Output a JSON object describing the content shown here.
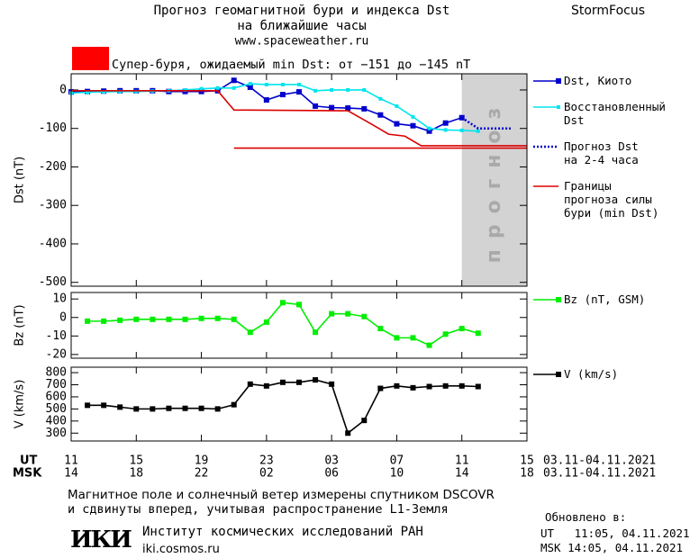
{
  "header": {
    "title": "Прогноз геомагнитной бури и индекса Dst",
    "subtitle": "на ближайшие часы",
    "url": "www.spaceweather.ru",
    "brand": "StormFocus",
    "alert": {
      "text": "Супер-буря, ожидаемый min Dst: от −151 до −145 nT",
      "color": "#ff0000"
    }
  },
  "x_axis": {
    "xlim": [
      11,
      39
    ],
    "ut_label": "UT",
    "msk_label": "MSK",
    "date_range": "03.11-04.11.2021",
    "ut_ticks": [
      11,
      15,
      19,
      23,
      {
        "value": 27,
        "label": "03"
      },
      {
        "value": 31,
        "label": "07"
      },
      {
        "value": 35,
        "label": "11"
      },
      {
        "value": 39,
        "label": "15"
      }
    ],
    "msk_ticks": [
      {
        "value": 11,
        "label": "14"
      },
      {
        "value": 15,
        "label": "18"
      },
      {
        "value": 19,
        "label": "22"
      },
      {
        "value": 23,
        "label": "02"
      },
      {
        "value": 27,
        "label": "06"
      },
      {
        "value": 31,
        "label": "10"
      },
      {
        "value": 35,
        "label": "14"
      },
      {
        "value": 39,
        "label": "18"
      }
    ]
  },
  "chart_data": [
    {
      "type": "line",
      "y_label": "Dst (nT)",
      "ylim": [
        -510,
        42
      ],
      "yticks": [
        0,
        -100,
        -200,
        -300,
        -400,
        -500
      ],
      "forecast_band": {
        "x": [
          35,
          39
        ],
        "label": "прогноз",
        "color": "#d3d3d3"
      },
      "series": [
        {
          "name": "Dst, Киото",
          "color": "#0000cd",
          "marker": "square",
          "x": [
            11,
            12,
            13,
            14,
            15,
            16,
            17,
            18,
            19,
            20,
            21,
            22,
            23,
            24,
            25,
            26,
            27,
            28,
            29,
            30,
            31,
            32,
            33,
            34,
            35
          ],
          "values": [
            -5,
            -4,
            -3,
            -2,
            -2,
            -2,
            -4,
            -4,
            -4,
            -2,
            25,
            7,
            -26,
            -12,
            -5,
            -42,
            -46,
            -47,
            -49,
            -65,
            -88,
            -93,
            -107,
            -86,
            -72
          ]
        },
        {
          "name": "Восстановленный\nDst",
          "color": "#00e5ee",
          "marker": "small-square",
          "x": [
            11,
            12,
            13,
            14,
            15,
            16,
            17,
            18,
            19,
            20,
            21,
            22,
            23,
            24,
            25,
            26,
            27,
            28,
            29,
            30,
            31,
            32,
            33,
            34,
            35,
            36
          ],
          "values": [
            -8,
            -6,
            -5,
            -4,
            -4,
            -3,
            -2,
            0,
            3,
            5,
            5,
            16,
            14,
            14,
            14,
            -2,
            0,
            0,
            0,
            -23,
            -42,
            -70,
            -100,
            -104,
            -105,
            -107
          ]
        },
        {
          "name": "Прогноз Dst\nна 2-4 часа",
          "color": "#0000cd",
          "dash": "dotted",
          "x": [
            35,
            36,
            37,
            38
          ],
          "values": [
            -72,
            -100,
            -100,
            -100
          ]
        },
        {
          "name": "Границы\nпрогноза силы\nбури (min Dst)",
          "color": "#dd0000",
          "x": [
            11,
            20,
            21,
            28,
            29.5,
            30.5,
            31.5,
            32.5,
            39
          ],
          "values": [
            -2,
            -2,
            -52,
            -54,
            -90,
            -115,
            -120,
            -145,
            -145
          ]
        },
        {
          "color": "#dd0000",
          "x": [
            21,
            39
          ],
          "values": [
            -151,
            -151
          ]
        }
      ]
    },
    {
      "type": "line",
      "y_label": "Bz (nT)",
      "ylim": [
        -22,
        13.5
      ],
      "yticks": [
        10,
        0,
        -10,
        -20
      ],
      "series": [
        {
          "name": "Bz (nT, GSM)",
          "color": "#00ee00",
          "marker": "square",
          "x": [
            12,
            13,
            14,
            15,
            16,
            17,
            18,
            19,
            20,
            21,
            22,
            23,
            24,
            25,
            26,
            27,
            28,
            29,
            30,
            31,
            32,
            33,
            34,
            35,
            36
          ],
          "values": [
            -2,
            -2,
            -1.5,
            -1,
            -1,
            -1,
            -1,
            -0.5,
            -0.5,
            -1,
            -8,
            -2.5,
            8,
            7,
            -8,
            2,
            2,
            0.5,
            -6,
            -11,
            -11,
            -15,
            -9,
            -6,
            -8.5
          ]
        }
      ]
    },
    {
      "type": "line",
      "y_label": "V (km/s)",
      "ylim": [
        235,
        845
      ],
      "yticks": [
        800,
        700,
        600,
        500,
        400,
        300
      ],
      "series": [
        {
          "name": "V (km/s)",
          "color": "#000000",
          "marker": "square",
          "x": [
            12,
            13,
            14,
            15,
            16,
            17,
            18,
            19,
            20,
            21,
            22,
            23,
            24,
            25,
            26,
            27,
            28,
            29,
            30,
            31,
            32,
            33,
            34,
            35,
            36
          ],
          "values": [
            530,
            530,
            515,
            500,
            500,
            505,
            505,
            505,
            500,
            535,
            705,
            690,
            720,
            720,
            740,
            705,
            300,
            405,
            670,
            690,
            675,
            685,
            690,
            690,
            685
          ]
        }
      ]
    }
  ],
  "footer": {
    "note1": "Магнитное поле и солнечный ветер измерены спутником DSCOVR",
    "note2": "и сдвинуты вперед, учитывая распространение L1-Земля",
    "logo": "ИКИ",
    "institute": "Институт космических исследований РАН",
    "site": "iki.cosmos.ru",
    "updated": "Обновлено в:",
    "updated_ut": "UT   11:05, 04.11.2021",
    "updated_msk": "MSK 14:05, 04.11.2021"
  }
}
